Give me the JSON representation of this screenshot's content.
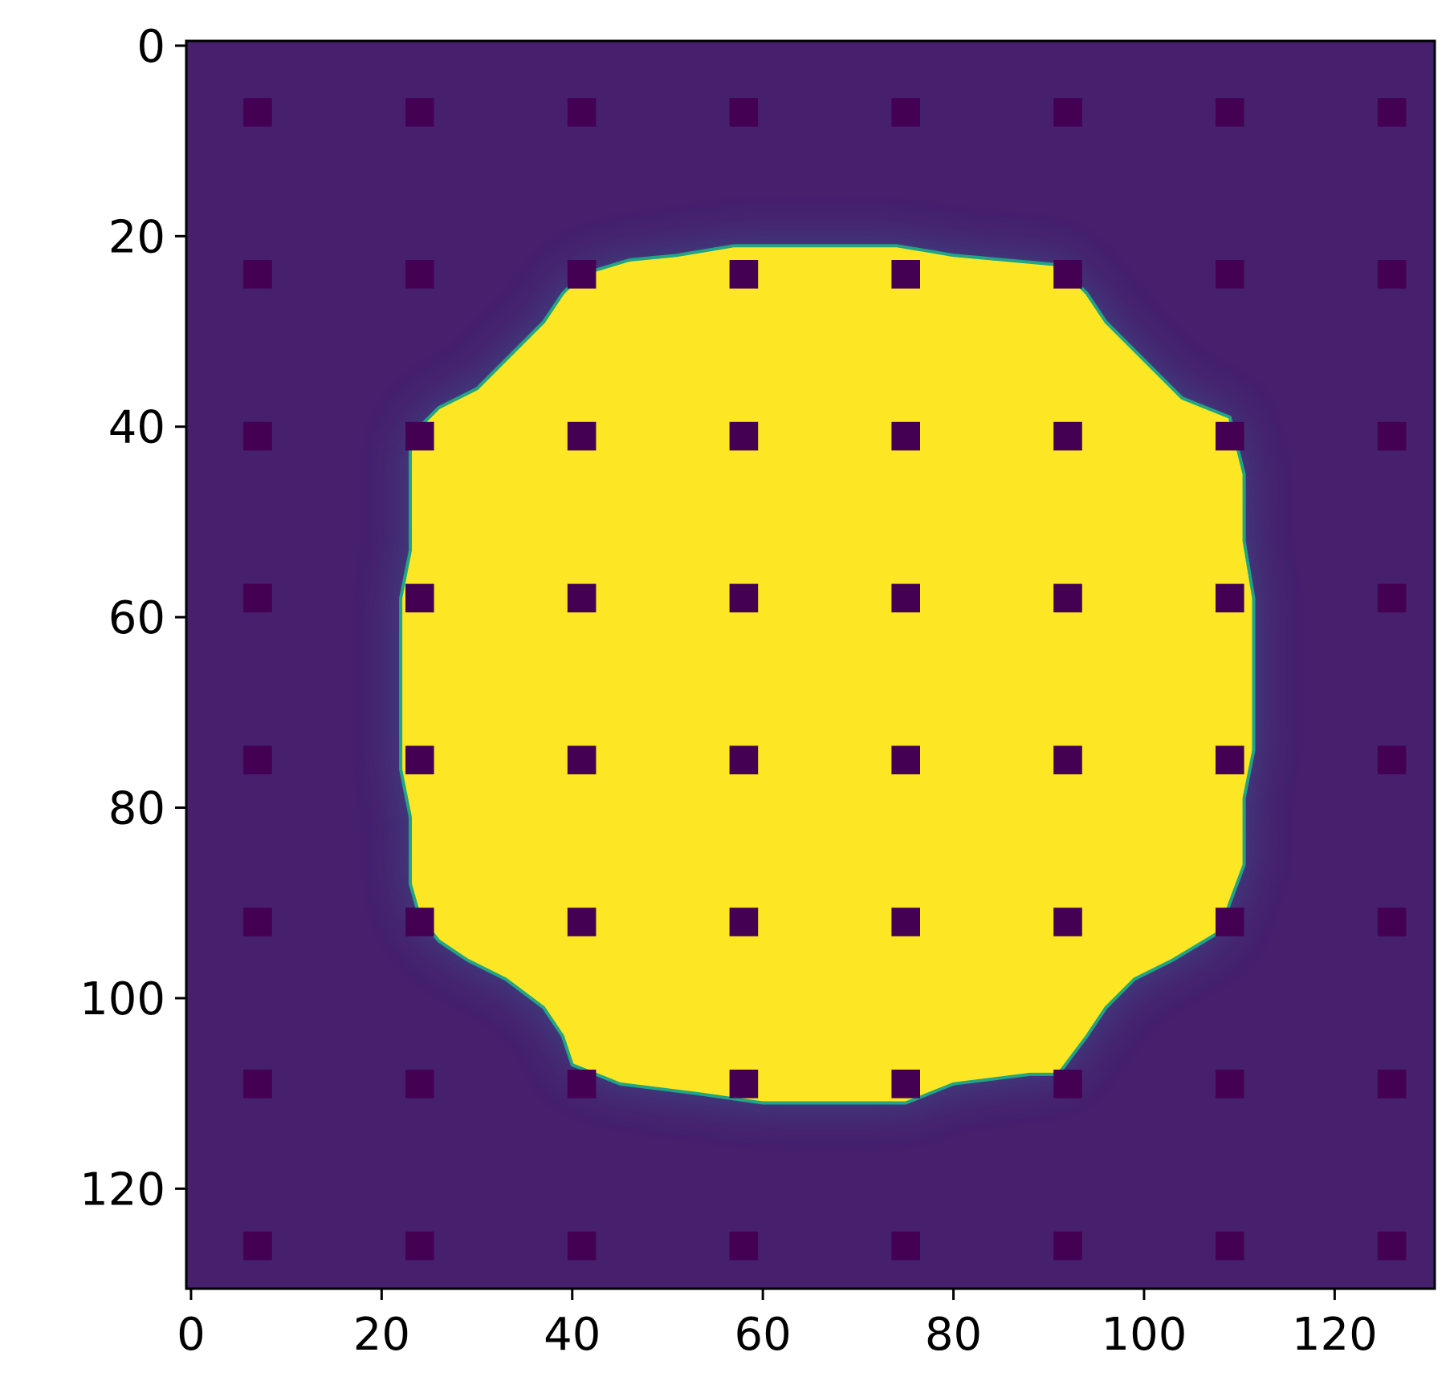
{
  "chart_data": {
    "type": "heatmap",
    "colormap": "viridis",
    "colors": {
      "background": "#46206d",
      "blob": "#fde725",
      "dot": "#440154",
      "edge": "#21a585",
      "axis": "#000000"
    },
    "xlim": [
      -0.5,
      130.5
    ],
    "ylim": [
      130.5,
      -0.5
    ],
    "y_inverted": true,
    "xticks": [
      "0",
      "20",
      "40",
      "60",
      "80",
      "100",
      "120"
    ],
    "yticks": [
      "0",
      "20",
      "40",
      "60",
      "80",
      "100",
      "120"
    ],
    "dot_grid": {
      "centers": [
        7,
        24,
        41,
        58,
        75,
        92,
        109,
        126
      ],
      "size": 3
    },
    "blob_outline": [
      [
        57,
        21
      ],
      [
        74,
        21
      ],
      [
        80,
        22
      ],
      [
        91,
        23
      ],
      [
        94,
        26
      ],
      [
        96,
        29
      ],
      [
        100,
        33
      ],
      [
        104,
        37
      ],
      [
        109,
        39
      ],
      [
        110.5,
        45
      ],
      [
        110.5,
        52
      ],
      [
        111.5,
        58
      ],
      [
        111.5,
        74
      ],
      [
        110.5,
        79
      ],
      [
        110.5,
        86
      ],
      [
        109,
        90
      ],
      [
        108,
        93
      ],
      [
        103,
        96
      ],
      [
        99,
        98
      ],
      [
        96,
        101
      ],
      [
        94,
        104
      ],
      [
        91,
        108
      ],
      [
        88,
        108
      ],
      [
        80,
        109
      ],
      [
        75,
        111
      ],
      [
        60,
        111
      ],
      [
        53,
        110
      ],
      [
        45,
        109
      ],
      [
        40,
        107
      ],
      [
        39,
        104
      ],
      [
        37,
        101
      ],
      [
        33,
        98
      ],
      [
        29,
        96
      ],
      [
        26,
        94
      ],
      [
        24,
        91.5
      ],
      [
        23,
        88
      ],
      [
        23,
        81
      ],
      [
        22,
        76
      ],
      [
        22,
        58
      ],
      [
        23,
        53
      ],
      [
        23,
        41
      ],
      [
        26,
        38
      ],
      [
        30,
        36
      ],
      [
        34,
        32
      ],
      [
        37,
        29
      ],
      [
        39,
        26
      ],
      [
        41,
        24
      ],
      [
        46,
        22.5
      ],
      [
        51,
        22
      ]
    ]
  }
}
